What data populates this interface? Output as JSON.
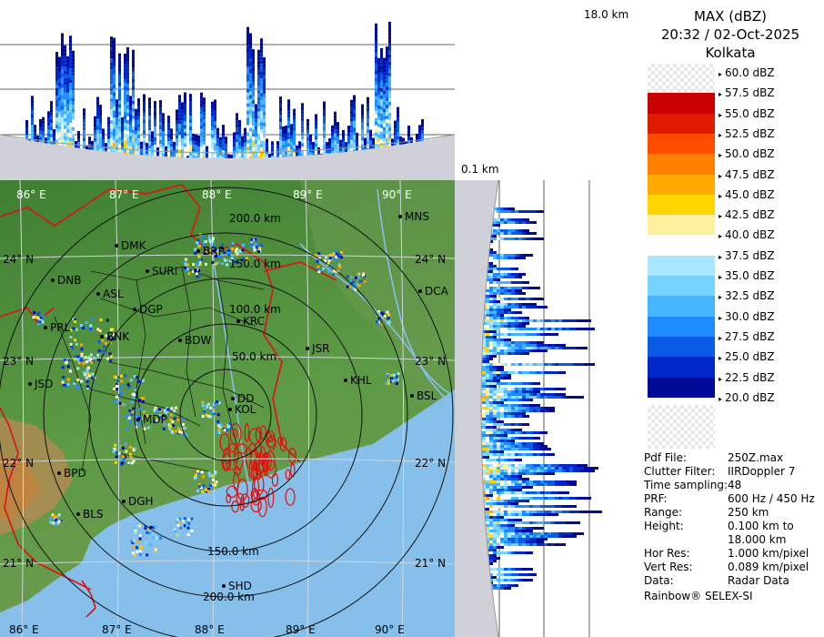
{
  "legend": {
    "title_line1": "MAX (dBZ)",
    "title_line2": "20:32 / 02-Oct-2025",
    "title_line3": "Kolkata",
    "levels": [
      {
        "label": "60.0 dBZ",
        "color": ""
      },
      {
        "label": "57.5 dBZ",
        "color": "#9c0000"
      },
      {
        "label": "55.0 dBZ",
        "color": "#c80000"
      },
      {
        "label": "52.5 dBZ",
        "color": "#e01c00"
      },
      {
        "label": "50.0 dBZ",
        "color": "#ff4b00"
      },
      {
        "label": "47.5 dBZ",
        "color": "#ff8000"
      },
      {
        "label": "45.0 dBZ",
        "color": "#ffaa00"
      },
      {
        "label": "42.5 dBZ",
        "color": "#ffd400"
      },
      {
        "label": "40.0 dBZ",
        "color": "#fff0a0"
      },
      {
        "label": "37.5 dBZ",
        "color": "#ffffff"
      },
      {
        "label": "35.0 dBZ",
        "color": "#a8e8ff"
      },
      {
        "label": "32.5 dBZ",
        "color": "#78d2ff"
      },
      {
        "label": "30.0 dBZ",
        "color": "#46b4ff"
      },
      {
        "label": "27.5 dBZ",
        "color": "#1e8cff"
      },
      {
        "label": "25.0 dBZ",
        "color": "#0a5ae6"
      },
      {
        "label": "22.5 dBZ",
        "color": "#0028c8"
      },
      {
        "label": "20.0 dBZ",
        "color": "#000a96"
      }
    ]
  },
  "corner": {
    "top_height": "18.0 km",
    "bottom_height": "0.1 km"
  },
  "metadata": [
    {
      "key": "Pdf File:",
      "value": "250Z.max"
    },
    {
      "key": "Clutter Filter:",
      "value": "IIRDoppler 7"
    },
    {
      "key": "Time sampling:",
      "value": "48"
    },
    {
      "key": "PRF:",
      "value": "600 Hz / 450 Hz"
    },
    {
      "key": "Range:",
      "value": "250 km"
    },
    {
      "key": "Height:",
      "value": "0.100 km to"
    },
    {
      "key": "",
      "value": "18.000 km"
    },
    {
      "key": "Hor Res:",
      "value": "1.000 km/pixel"
    },
    {
      "key": "Vert Res:",
      "value": "0.089 km/pixel"
    },
    {
      "key": "Data:",
      "value": "Radar Data"
    }
  ],
  "footer": "Rainbow® SELEX-SI",
  "map": {
    "range_rings": [
      "50.0 km",
      "100.0 km",
      "150.0 km",
      "200.0 km"
    ],
    "lon_labels": [
      "86° E",
      "87° E",
      "88° E",
      "89° E",
      "90° E"
    ],
    "lat_labels": [
      "24° N",
      "23° N",
      "22° N",
      "21° N"
    ],
    "stations": [
      "MNS",
      "DMK",
      "BRP",
      "SURI",
      "DNB",
      "ASL",
      "DGP",
      "DCA",
      "KRC",
      "PRL",
      "BNK",
      "BDW",
      "JSR",
      "KHL",
      "BSL",
      "JSD",
      "MDP",
      "DD",
      "KOL",
      "BPD",
      "DGH",
      "BLS",
      "SHD"
    ]
  },
  "colors": {
    "land": "#4f8f3e",
    "sea": "#86bfe9",
    "border_red": "#e01010",
    "district": "#1a1a1a"
  }
}
